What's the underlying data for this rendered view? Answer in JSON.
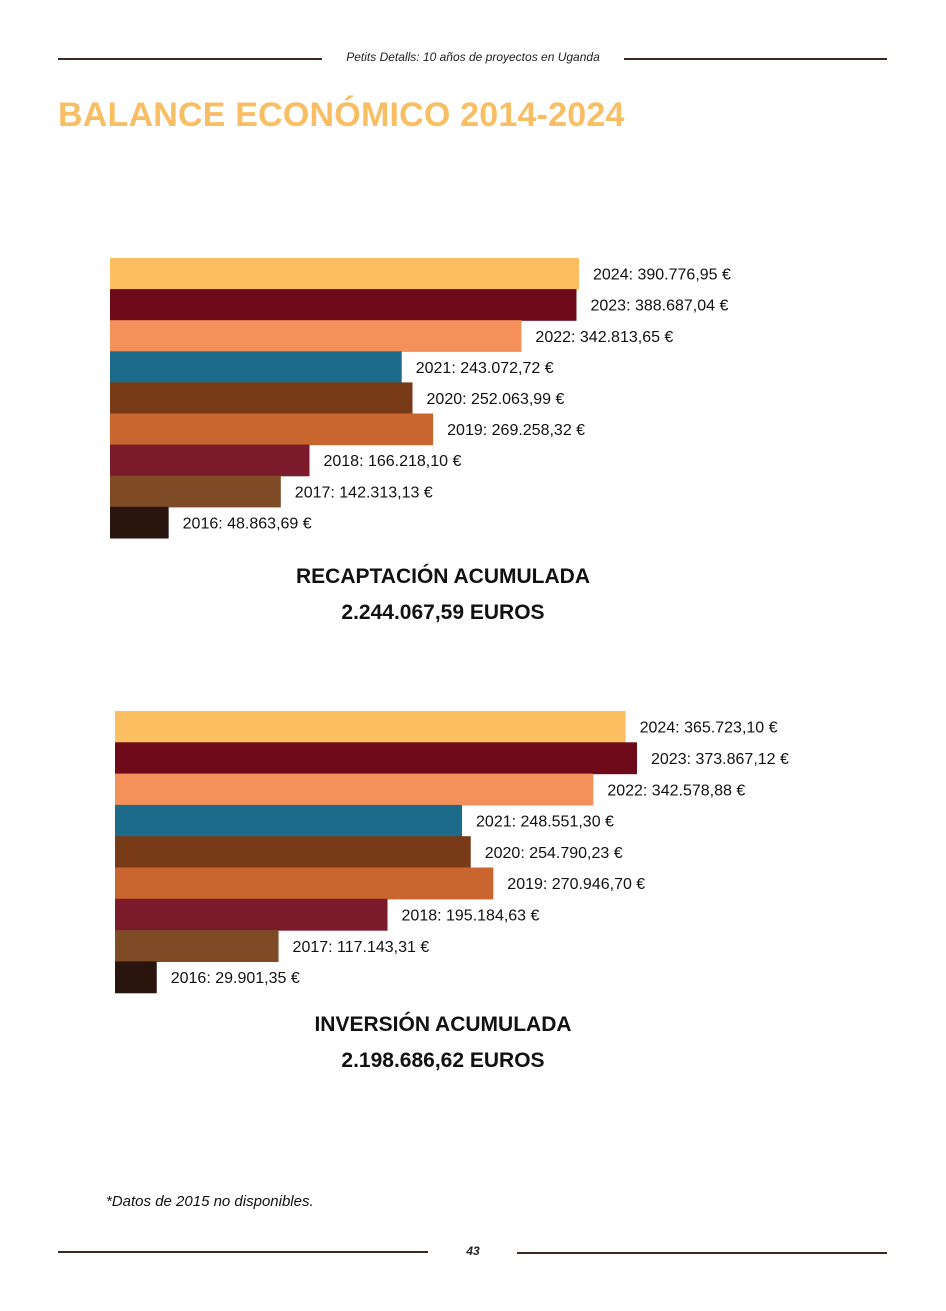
{
  "header": {
    "text": "Petits Detalls: 10 años de proyectos en Uganda"
  },
  "title": "BALANCE ECONÓMICO 2014-2024",
  "chart_data": [
    {
      "type": "bar",
      "orientation": "horizontal",
      "categories": [
        "2024",
        "2023",
        "2022",
        "2021",
        "2020",
        "2019",
        "2018",
        "2017",
        "2016"
      ],
      "values": [
        390776.95,
        388687.04,
        342813.65,
        243072.72,
        252063.99,
        269258.32,
        166218.1,
        142313.13,
        48863.69
      ],
      "labels": [
        "2024: 390.776,95 €",
        "2023: 388.687,04 €",
        "2022: 342.813,65 €",
        "2021: 243.072,72 €",
        "2020: 252.063,99 €",
        "2019: 269.258,32 €",
        "2018: 166.218,10 €",
        "2017: 142.313,13 €",
        "2016: 48.863,69 €"
      ],
      "colors": [
        "#fbbf62",
        "#6e0a1a",
        "#f4915a",
        "#1c6b8a",
        "#793b17",
        "#c9652f",
        "#7b1a2a",
        "#7f4a26",
        "#2a140e"
      ],
      "caption_line1": "RECAPTACIÓN ACUMULADA",
      "caption_line2": "2.244.067,59 EUROS",
      "xlim": [
        0,
        390776.95
      ],
      "grid": false
    },
    {
      "type": "bar",
      "orientation": "horizontal",
      "categories": [
        "2024",
        "2023",
        "2022",
        "2021",
        "2020",
        "2019",
        "2018",
        "2017",
        "2016"
      ],
      "values": [
        365723.1,
        373867.12,
        342578.88,
        248551.3,
        254790.23,
        270946.7,
        195184.63,
        117143.31,
        29901.35
      ],
      "labels": [
        "2024: 365.723,10 €",
        "2023: 373.867,12 €",
        "2022: 342.578,88 €",
        "2021: 248.551,30 €",
        "2020: 254.790,23 €",
        "2019: 270.946,70 €",
        "2018: 195.184,63 €",
        "2017: 117.143,31 €",
        "2016: 29.901,35 €"
      ],
      "colors": [
        "#fbbf62",
        "#6e0a1a",
        "#f4915a",
        "#1c6b8a",
        "#793b17",
        "#c9652f",
        "#7b1a2a",
        "#7f4a26",
        "#2a140e"
      ],
      "caption_line1": "INVERSIÓN ACUMULADA",
      "caption_line2": "2.198.686,62 EUROS",
      "xlim": [
        0,
        373867.12
      ],
      "grid": false
    }
  ],
  "footnote": "*Datos de 2015 no disponibles.",
  "page_number": "43"
}
